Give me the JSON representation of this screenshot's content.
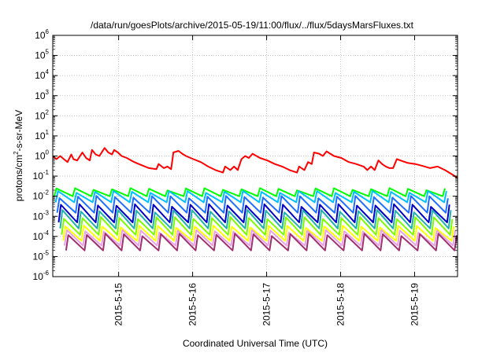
{
  "chart_data": {
    "type": "line",
    "title": "/data/run/goesPlots/archive/2015-05-19/11:00/flux/../flux/5daysMarsFluxes.txt",
    "xlabel": "Coordinated Universal Time (UTC)",
    "ylabel": {
      "pre": "protons/cm",
      "sup": "2",
      "post": "-s-sr-MeV"
    },
    "yscale": "log",
    "ylim_exp": [
      -6,
      6
    ],
    "y_ticks": [
      {
        "base": "10",
        "exp": "-6"
      },
      {
        "base": "10",
        "exp": "-5"
      },
      {
        "base": "10",
        "exp": "-4"
      },
      {
        "base": "10",
        "exp": "-3"
      },
      {
        "base": "10",
        "exp": "-2"
      },
      {
        "base": "10",
        "exp": "-1"
      },
      {
        "base": "10",
        "exp": "0"
      },
      {
        "base": "10",
        "exp": "1"
      },
      {
        "base": "10",
        "exp": "2"
      },
      {
        "base": "10",
        "exp": "3"
      },
      {
        "base": "10",
        "exp": "4"
      },
      {
        "base": "10",
        "exp": "5"
      },
      {
        "base": "10",
        "exp": "6"
      }
    ],
    "xlim_days": [
      0,
      5.47
    ],
    "x_tick_labels": [
      "2015-5-15",
      "2015-5-16",
      "2015-5-17",
      "2015-5-18",
      "2015-5-19"
    ],
    "grid": true,
    "legend": "none",
    "series": [
      {
        "color": "#ff0000",
        "width": 2,
        "x_days": [
          0.0,
          0.05,
          0.1,
          0.15,
          0.2,
          0.25,
          0.28,
          0.33,
          0.4,
          0.45,
          0.5,
          0.53,
          0.58,
          0.63,
          0.7,
          0.75,
          0.8,
          0.83,
          0.88,
          0.93,
          1.0,
          1.1,
          1.2,
          1.3,
          1.4,
          1.43,
          1.5,
          1.55,
          1.6,
          1.63,
          1.7,
          1.75,
          1.8,
          1.9,
          2.0,
          2.1,
          2.2,
          2.3,
          2.33,
          2.4,
          2.45,
          2.5,
          2.55,
          2.6,
          2.65,
          2.7,
          2.8,
          2.9,
          3.0,
          3.1,
          3.2,
          3.3,
          3.33,
          3.4,
          3.45,
          3.5,
          3.53,
          3.6,
          3.65,
          3.7,
          3.75,
          3.8,
          3.9,
          4.0,
          4.1,
          4.2,
          4.25,
          4.3,
          4.35,
          4.4,
          4.45,
          4.5,
          4.55,
          4.6,
          4.65,
          4.7,
          4.8,
          4.9,
          5.0,
          5.1,
          5.2,
          5.3,
          5.4,
          5.47
        ],
        "y": [
          1.0,
          0.7,
          1.0,
          0.7,
          0.5,
          1.2,
          0.7,
          0.6,
          1.5,
          0.8,
          0.6,
          2.0,
          1.2,
          1.0,
          2.5,
          1.5,
          1.2,
          2.0,
          1.5,
          1.0,
          0.8,
          0.5,
          0.35,
          0.25,
          0.22,
          0.4,
          0.25,
          0.3,
          0.22,
          1.5,
          1.8,
          1.3,
          1.0,
          0.7,
          0.5,
          0.3,
          0.2,
          0.15,
          0.3,
          0.2,
          0.3,
          0.2,
          0.7,
          1.0,
          0.8,
          1.3,
          0.8,
          0.6,
          0.4,
          0.3,
          0.2,
          0.15,
          0.3,
          0.2,
          0.5,
          0.4,
          1.5,
          1.3,
          1.0,
          1.7,
          1.3,
          1.0,
          0.8,
          0.5,
          0.4,
          0.3,
          0.2,
          0.3,
          0.2,
          0.6,
          0.4,
          0.3,
          0.25,
          0.25,
          0.7,
          0.6,
          0.45,
          0.4,
          0.32,
          0.25,
          0.3,
          0.2,
          0.12,
          0.08
        ]
      },
      {
        "color": "#00ff00",
        "width": 2,
        "base": 0.01,
        "peak": 0.022,
        "period_days": 0.25
      },
      {
        "color": "#00bfff",
        "width": 2,
        "base": 0.005,
        "peak": 0.016,
        "period_days": 0.25
      },
      {
        "color": "#1e6fff",
        "width": 2,
        "base": 0.0015,
        "peak": 0.009,
        "period_days": 0.25
      },
      {
        "color": "#0000c8",
        "width": 2,
        "base": 0.0005,
        "peak": 0.0035,
        "period_days": 0.25
      },
      {
        "color": "#20b2aa",
        "width": 2,
        "base": 0.00025,
        "peak": 0.0018,
        "period_days": 0.25
      },
      {
        "color": "#7cfc00",
        "width": 2,
        "base": 0.00012,
        "peak": 0.0008,
        "period_days": 0.25
      },
      {
        "color": "#ffff00",
        "width": 2,
        "base": 6e-05,
        "peak": 0.0003,
        "period_days": 0.25
      },
      {
        "color": "#e8a0e8",
        "width": 2,
        "base": 3.5e-05,
        "peak": 0.00018,
        "period_days": 0.25
      },
      {
        "color": "#a0306e",
        "width": 2,
        "base": 2e-05,
        "peak": 0.00012,
        "period_days": 0.25
      }
    ]
  }
}
